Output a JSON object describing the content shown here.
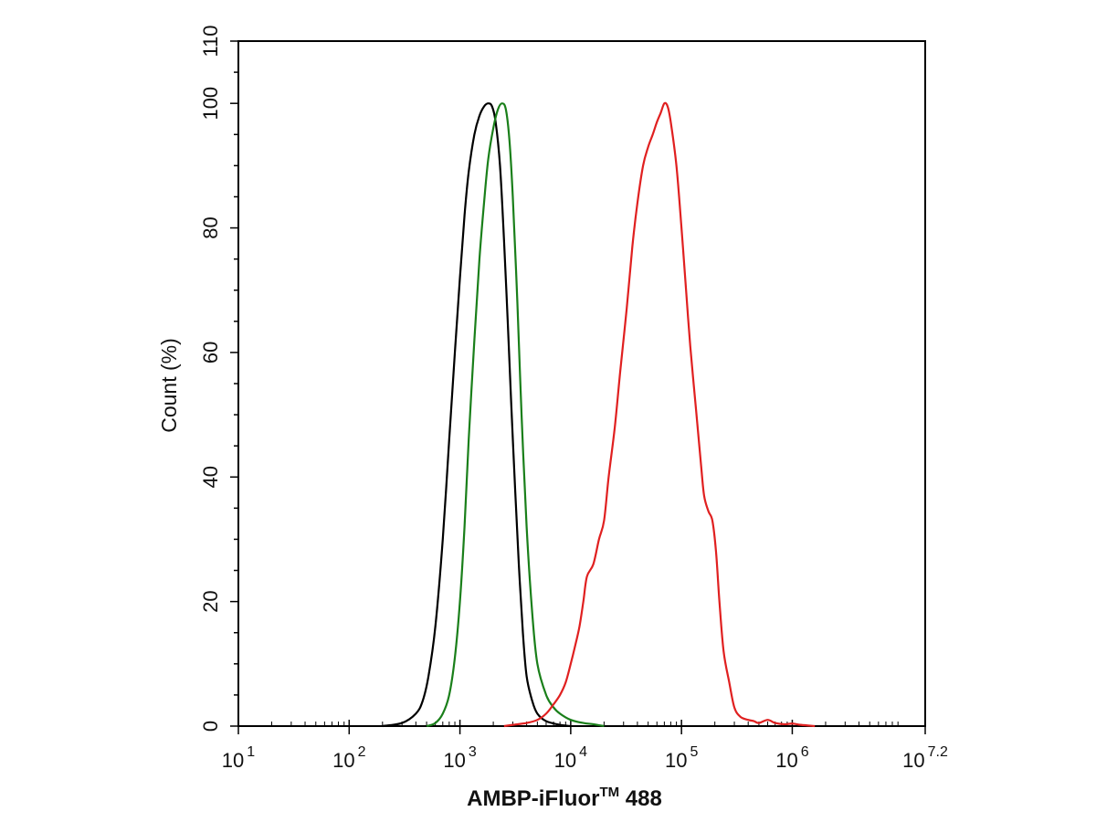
{
  "chart_data": {
    "type": "line",
    "title": "",
    "xlabel": {
      "main": "AMBP-iFluor",
      "superscript": "TM",
      "suffix": " 488"
    },
    "ylabel": "Count  (%)",
    "x_scale": "log",
    "xlim": [
      10,
      15848932
    ],
    "ylim": [
      0,
      110
    ],
    "x_ticks": [
      {
        "base": "10",
        "exp": "1"
      },
      {
        "base": "10",
        "exp": "2"
      },
      {
        "base": "10",
        "exp": "3"
      },
      {
        "base": "10",
        "exp": "4"
      },
      {
        "base": "10",
        "exp": "5"
      },
      {
        "base": "10",
        "exp": "6"
      },
      {
        "base": "10",
        "exp": "7.2"
      }
    ],
    "y_ticks": [
      0,
      20,
      40,
      60,
      80,
      100,
      110
    ],
    "grid": false,
    "legend": "none",
    "series": [
      {
        "color": "#000000",
        "points": [
          [
            200,
            0
          ],
          [
            300,
            0.5
          ],
          [
            400,
            2
          ],
          [
            460,
            4
          ],
          [
            520,
            8
          ],
          [
            600,
            16
          ],
          [
            700,
            30
          ],
          [
            800,
            46
          ],
          [
            900,
            60
          ],
          [
            1000,
            72
          ],
          [
            1100,
            82
          ],
          [
            1200,
            89
          ],
          [
            1350,
            95
          ],
          [
            1500,
            98
          ],
          [
            1650,
            99.5
          ],
          [
            1800,
            100
          ],
          [
            1950,
            99.5
          ],
          [
            2100,
            97
          ],
          [
            2300,
            90
          ],
          [
            2500,
            78
          ],
          [
            2700,
            65
          ],
          [
            2900,
            52
          ],
          [
            3150,
            38
          ],
          [
            3400,
            26
          ],
          [
            3700,
            15
          ],
          [
            4000,
            8
          ],
          [
            4500,
            4
          ],
          [
            5000,
            2
          ],
          [
            6000,
            0.8
          ],
          [
            8000,
            0.2
          ],
          [
            10000,
            0
          ]
        ]
      },
      {
        "color": "#1a7f1a",
        "points": [
          [
            500,
            0
          ],
          [
            600,
            0.5
          ],
          [
            700,
            2
          ],
          [
            800,
            5
          ],
          [
            900,
            11
          ],
          [
            1000,
            20
          ],
          [
            1100,
            32
          ],
          [
            1200,
            46
          ],
          [
            1350,
            62
          ],
          [
            1500,
            75
          ],
          [
            1650,
            84
          ],
          [
            1800,
            91
          ],
          [
            2000,
            96
          ],
          [
            2200,
            99
          ],
          [
            2400,
            100
          ],
          [
            2600,
            99
          ],
          [
            2800,
            94
          ],
          [
            3000,
            85
          ],
          [
            3300,
            68
          ],
          [
            3600,
            50
          ],
          [
            4000,
            32
          ],
          [
            4500,
            18
          ],
          [
            5000,
            10
          ],
          [
            6000,
            5
          ],
          [
            7000,
            3
          ],
          [
            8000,
            2
          ],
          [
            10000,
            1
          ],
          [
            13000,
            0.5
          ],
          [
            16000,
            0.3
          ],
          [
            20000,
            0
          ]
        ]
      },
      {
        "color": "#e02020",
        "points": [
          [
            2500,
            0
          ],
          [
            3000,
            0.2
          ],
          [
            4000,
            0.5
          ],
          [
            5000,
            1
          ],
          [
            6000,
            2
          ],
          [
            7000,
            3.5
          ],
          [
            8000,
            5
          ],
          [
            9000,
            7
          ],
          [
            10000,
            10
          ],
          [
            11000,
            13
          ],
          [
            12000,
            16
          ],
          [
            13000,
            20
          ],
          [
            14000,
            24
          ],
          [
            16000,
            26
          ],
          [
            18000,
            30
          ],
          [
            20000,
            33
          ],
          [
            22000,
            40
          ],
          [
            25000,
            48
          ],
          [
            28000,
            57
          ],
          [
            32000,
            67
          ],
          [
            36000,
            77
          ],
          [
            40000,
            84
          ],
          [
            45000,
            90
          ],
          [
            50000,
            93
          ],
          [
            55000,
            95
          ],
          [
            60000,
            97
          ],
          [
            65000,
            98.5
          ],
          [
            70000,
            100
          ],
          [
            75000,
            99.5
          ],
          [
            80000,
            97
          ],
          [
            90000,
            90
          ],
          [
            100000,
            80
          ],
          [
            110000,
            70
          ],
          [
            120000,
            61
          ],
          [
            135000,
            51
          ],
          [
            150000,
            42
          ],
          [
            160000,
            37
          ],
          [
            175000,
            34.5
          ],
          [
            190000,
            33
          ],
          [
            205000,
            28
          ],
          [
            220000,
            20
          ],
          [
            240000,
            12
          ],
          [
            270000,
            7
          ],
          [
            300000,
            3
          ],
          [
            340000,
            1.5
          ],
          [
            400000,
            1
          ],
          [
            450000,
            0.8
          ],
          [
            500000,
            0.5
          ],
          [
            600000,
            1
          ],
          [
            700000,
            0.5
          ],
          [
            850000,
            0.3
          ],
          [
            1000000,
            0.4
          ],
          [
            1200000,
            0.2
          ],
          [
            1600000,
            0
          ]
        ]
      }
    ]
  }
}
